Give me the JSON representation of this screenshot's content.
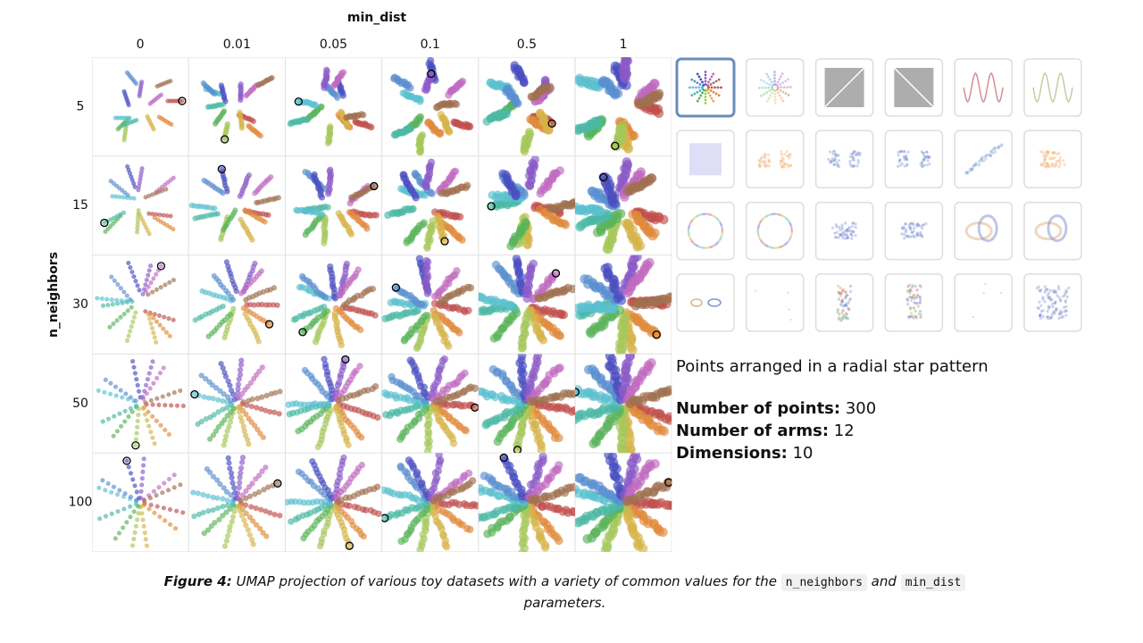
{
  "grid": {
    "x_label": "min_dist",
    "columns": [
      "0",
      "0.01",
      "0.05",
      "0.1",
      "0.5",
      "1"
    ],
    "y_label": "n_neighbors",
    "rows": [
      "5",
      "15",
      "30",
      "50",
      "100"
    ]
  },
  "description": {
    "text": "Points arranged in a radial star pattern",
    "stats": [
      {
        "label": "Number of points:",
        "value": 300
      },
      {
        "label": "Number of arms:",
        "value": 12
      },
      {
        "label": "Dimensions:",
        "value": 10
      }
    ]
  },
  "caption": {
    "label": "Figure 4:",
    "text_1": "UMAP projection of various toy datasets with a variety of common values for the",
    "code_1": "n_neighbors",
    "text_2": "and",
    "code_2": "min_dist",
    "text_3": "parameters."
  }
}
